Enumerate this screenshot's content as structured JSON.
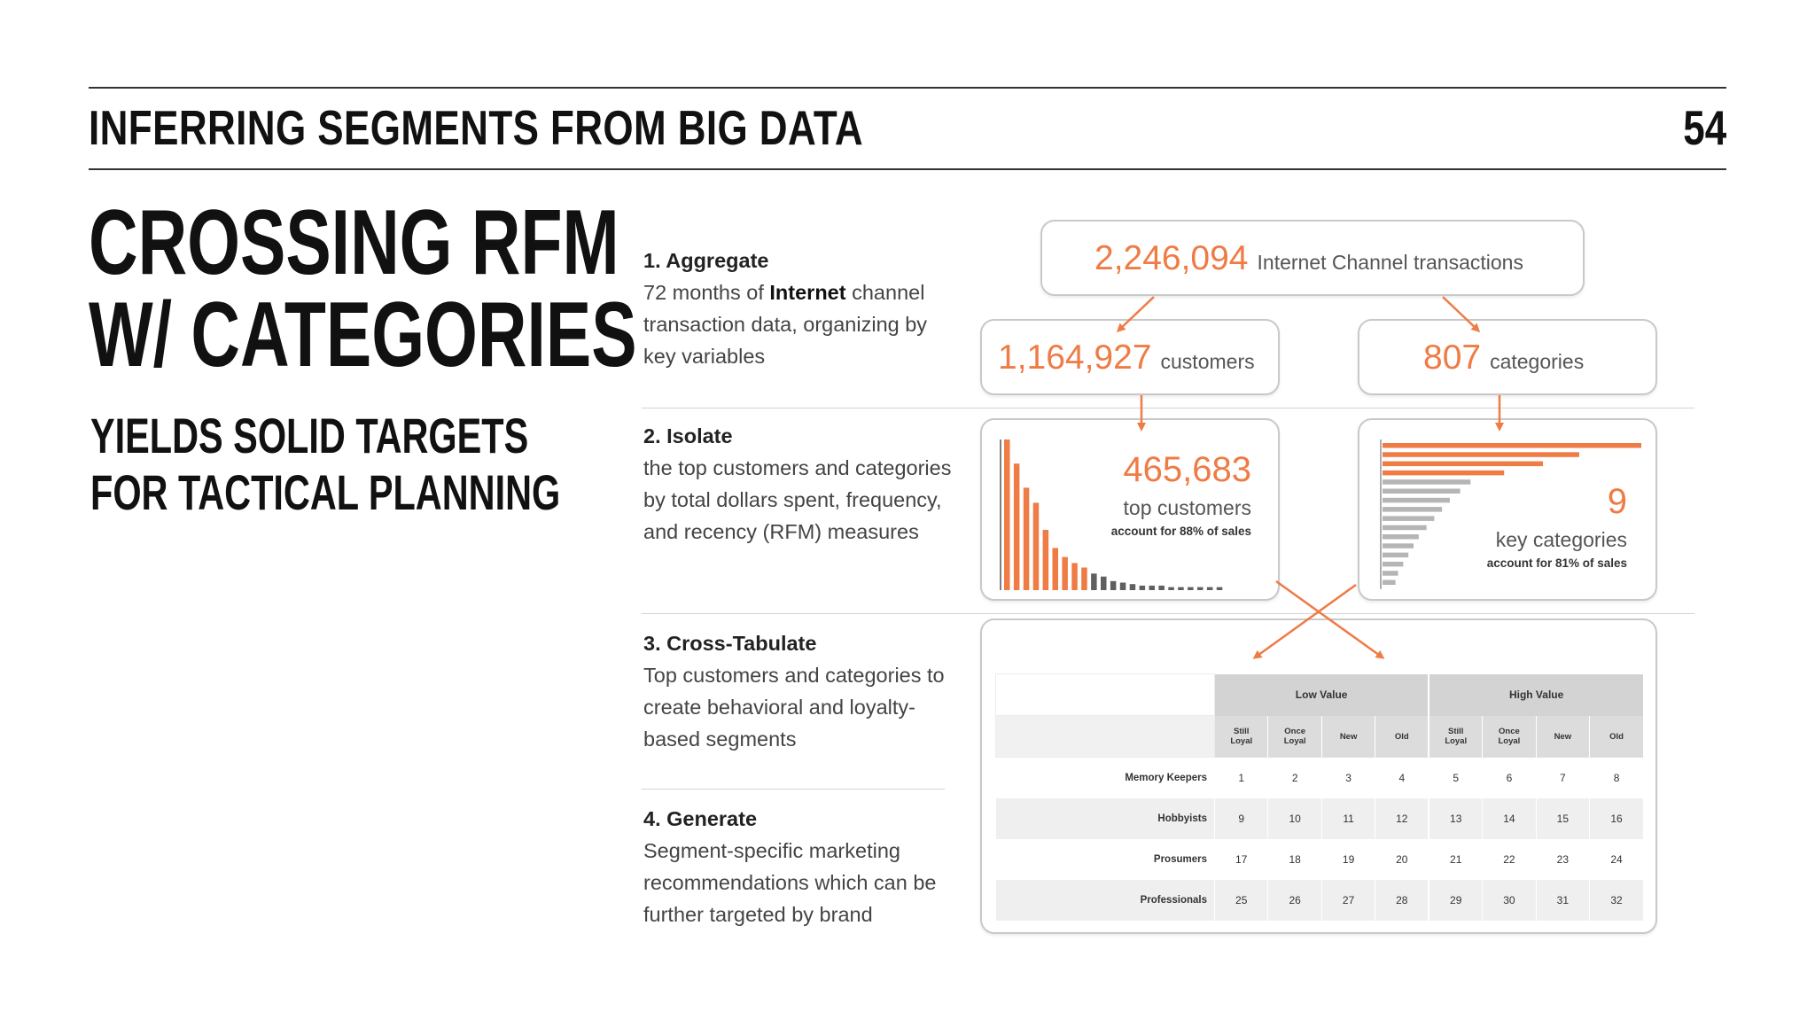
{
  "header": {
    "title": "INFERRING SEGMENTS FROM BIG DATA",
    "page_number": "54"
  },
  "title": {
    "line1": "CROSSING RFM",
    "line2": "W/ CATEGORIES"
  },
  "subtitle": {
    "line1": "YIELDS SOLID TARGETS",
    "line2": "FOR TACTICAL PLANNING"
  },
  "steps": [
    {
      "heading": "1. Aggregate",
      "text_pre": "72 months of ",
      "text_bold": "Internet",
      "text_post": " channel transaction data, organizing by key variables"
    },
    {
      "heading": "2. Isolate",
      "text": "the top customers and categories by total dollars spent, frequency, and recency (RFM) measures"
    },
    {
      "heading": "3. Cross-Tabulate",
      "text": "Top customers and categories to create behavioral and loyalty-based segments"
    },
    {
      "heading": "4. Generate",
      "text": "Segment-specific marketing recommendations which can be further targeted by brand"
    }
  ],
  "diagram": {
    "transactions": {
      "value": "2,246,094",
      "label": "Internet Channel transactions"
    },
    "customers": {
      "value": "1,164,927",
      "label": "customers"
    },
    "categories": {
      "value": "807",
      "label": "categories"
    },
    "top_customers": {
      "value": "465,683",
      "label": "top customers",
      "note": "account for 88% of sales"
    },
    "key_categories": {
      "value": "9",
      "label": "key categories",
      "note": "account for 81% of sales"
    },
    "colors": {
      "accent": "#ef7b45",
      "muted": "#5f5f5f",
      "muted_light": "#b5b5b5"
    }
  },
  "chart_data": [
    {
      "type": "bar",
      "orientation": "vertical",
      "description_source": "top customers distribution",
      "values": [
        100,
        84,
        68,
        58,
        40,
        28,
        22,
        18,
        15,
        11,
        9,
        6,
        5,
        4,
        3,
        3,
        3,
        2,
        2,
        2,
        2,
        2,
        2
      ],
      "highlight_count": 9,
      "colors": {
        "highlight": "#ef7b45",
        "rest": "#5f5f5f"
      }
    },
    {
      "type": "bar",
      "orientation": "horizontal",
      "values": [
        100,
        76,
        62,
        47,
        34,
        30,
        26,
        23,
        20,
        17,
        14,
        12,
        10,
        8,
        6,
        5
      ],
      "highlight_count": 4,
      "colors": {
        "highlight": "#ef7b45",
        "rest": "#b5b5b5"
      }
    }
  ],
  "segment_table": {
    "groups": [
      "Low Value",
      "High Value"
    ],
    "columns": [
      "Still\nLoyal",
      "Once\nLoyal",
      "New",
      "Old",
      "Still\nLoyal",
      "Once\nLoyal",
      "New",
      "Old"
    ],
    "rows": [
      {
        "label": "Memory Keepers",
        "cells": [
          "1",
          "2",
          "3",
          "4",
          "5",
          "6",
          "7",
          "8"
        ]
      },
      {
        "label": "Hobbyists",
        "cells": [
          "9",
          "10",
          "11",
          "12",
          "13",
          "14",
          "15",
          "16"
        ]
      },
      {
        "label": "Prosumers",
        "cells": [
          "17",
          "18",
          "19",
          "20",
          "21",
          "22",
          "23",
          "24"
        ]
      },
      {
        "label": "Professionals",
        "cells": [
          "25",
          "26",
          "27",
          "28",
          "29",
          "30",
          "31",
          "32"
        ]
      }
    ]
  }
}
